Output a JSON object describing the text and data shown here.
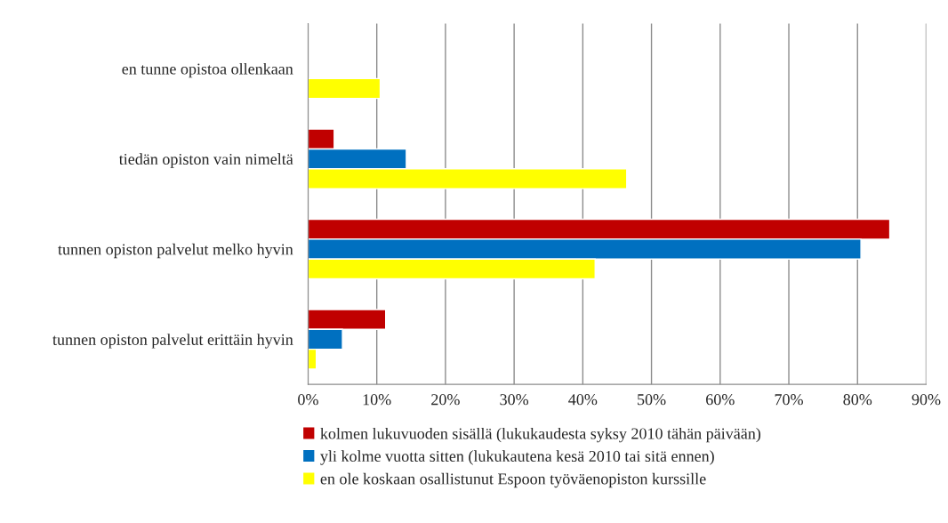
{
  "chart_data": {
    "type": "bar",
    "orientation": "horizontal",
    "categories": [
      "en tunne opistoa ollenkaan",
      "tiedän opiston vain nimeltä",
      "tunnen opiston palvelut melko hyvin",
      "tunnen opiston palvelut erittäin hyvin"
    ],
    "series": [
      {
        "name": "kolmen lukuvuoden sisällä (lukukaudesta syksy 2010 tähän päivään)",
        "color": "#c00000",
        "values": [
          null,
          3.8,
          84.7,
          11.3
        ]
      },
      {
        "name": "yli kolme vuotta sitten (lukukautena kesä 2010 tai sitä ennen)",
        "color": "#0070c0",
        "values": [
          null,
          14.3,
          80.5,
          5.0
        ]
      },
      {
        "name": "en ole koskaan osallistunut Espoon työväenopiston kurssille",
        "color": "#ffff00",
        "values": [
          10.5,
          46.4,
          41.8,
          1.2
        ]
      }
    ],
    "xlim": [
      0,
      90
    ],
    "xticks": [
      {
        "value": 0,
        "label": "0%"
      },
      {
        "value": 10,
        "label": "10%"
      },
      {
        "value": 20,
        "label": "20%"
      },
      {
        "value": 30,
        "label": "30%"
      },
      {
        "value": 40,
        "label": "40%"
      },
      {
        "value": 50,
        "label": "50%"
      },
      {
        "value": 60,
        "label": "60%"
      },
      {
        "value": 70,
        "label": "70%"
      },
      {
        "value": 80,
        "label": "80%"
      },
      {
        "value": 90,
        "label": "90%"
      }
    ],
    "grid": "x",
    "legend": "bottom"
  }
}
